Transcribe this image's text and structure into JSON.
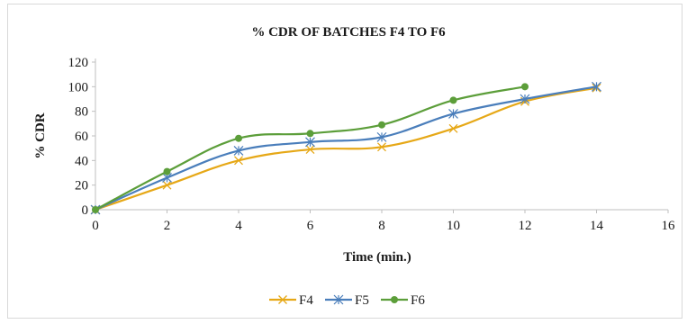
{
  "chart_data": {
    "type": "line",
    "title": "% CDR OF BATCHES F4 TO F6",
    "xlabel": "Time (min.)",
    "ylabel": "% CDR",
    "xlim": [
      0,
      16
    ],
    "ylim": [
      0,
      120
    ],
    "xticks": [
      "0",
      "2",
      "4",
      "6",
      "8",
      "10",
      "12",
      "14",
      "16"
    ],
    "yticks": [
      "0",
      "20",
      "40",
      "60",
      "80",
      "100",
      "120"
    ],
    "grid": false,
    "legend_position": "bottom",
    "series": [
      {
        "name": "F4",
        "color": "#e6a817",
        "marker": "x",
        "x": [
          0,
          2,
          4,
          6,
          8,
          10,
          12,
          14
        ],
        "values": [
          0,
          20,
          40,
          49,
          51,
          66,
          88,
          99
        ]
      },
      {
        "name": "F5",
        "color": "#4a7ebb",
        "marker": "star",
        "x": [
          0,
          2,
          4,
          6,
          8,
          10,
          12,
          14
        ],
        "values": [
          0,
          26,
          48,
          55,
          59,
          78,
          90,
          100
        ]
      },
      {
        "name": "F6",
        "color": "#5c9e3a",
        "marker": "circle",
        "x": [
          0,
          2,
          4,
          6,
          8,
          10,
          12
        ],
        "values": [
          0,
          31,
          58,
          62,
          69,
          89,
          100
        ]
      }
    ]
  }
}
